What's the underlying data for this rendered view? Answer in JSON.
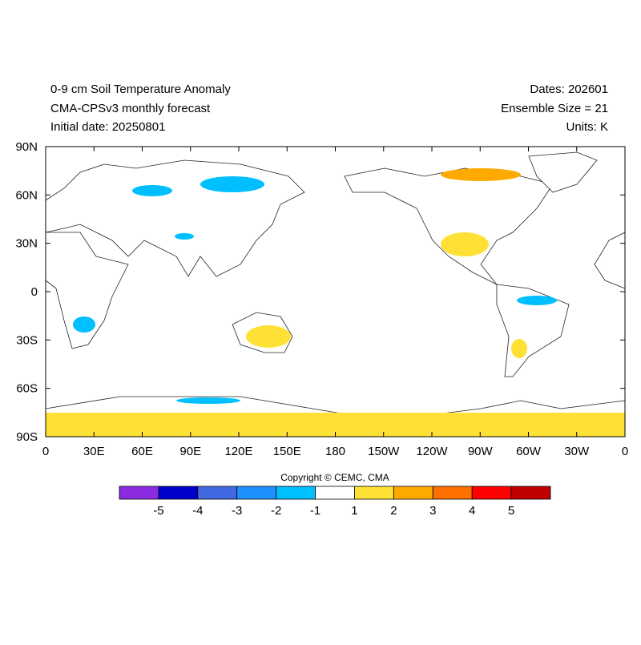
{
  "header": {
    "title": "0-9 cm Soil Temperature Anomaly",
    "model": "CMA-CPSv3 monthly forecast",
    "initial_date": "Initial date: 20250801",
    "dates": "Dates: 202601",
    "ensemble": "Ensemble Size = 21",
    "units": "Units: K"
  },
  "map": {
    "lon_ticks": [
      {
        "value": 0,
        "label": "0"
      },
      {
        "value": 30,
        "label": "30E"
      },
      {
        "value": 60,
        "label": "60E"
      },
      {
        "value": 90,
        "label": "90E"
      },
      {
        "value": 120,
        "label": "120E"
      },
      {
        "value": 150,
        "label": "150E"
      },
      {
        "value": 180,
        "label": "180"
      },
      {
        "value": 210,
        "label": "150W"
      },
      {
        "value": 240,
        "label": "120W"
      },
      {
        "value": 270,
        "label": "90W"
      },
      {
        "value": 300,
        "label": "60W"
      },
      {
        "value": 330,
        "label": "30W"
      },
      {
        "value": 360,
        "label": "0"
      }
    ],
    "lat_ticks": [
      {
        "value": 90,
        "label": "90N"
      },
      {
        "value": 60,
        "label": "60N"
      },
      {
        "value": 30,
        "label": "30N"
      },
      0,
      {
        "value": -30,
        "label": "30S"
      },
      {
        "value": -60,
        "label": "60S"
      },
      {
        "value": -90,
        "label": "90S"
      }
    ]
  },
  "colorbar": {
    "copyright": "Copyright © CEMC, CMA",
    "colors": [
      "#8a2be2",
      "#0000cd",
      "#4169e1",
      "#1e90ff",
      "#00bfff",
      "#ffffff",
      "#ffe135",
      "#ffaa00",
      "#ff7000",
      "#ff0000",
      "#c00000"
    ],
    "labels": [
      -5,
      -4,
      -3,
      -2,
      -1,
      1,
      2,
      3,
      4,
      5
    ]
  }
}
